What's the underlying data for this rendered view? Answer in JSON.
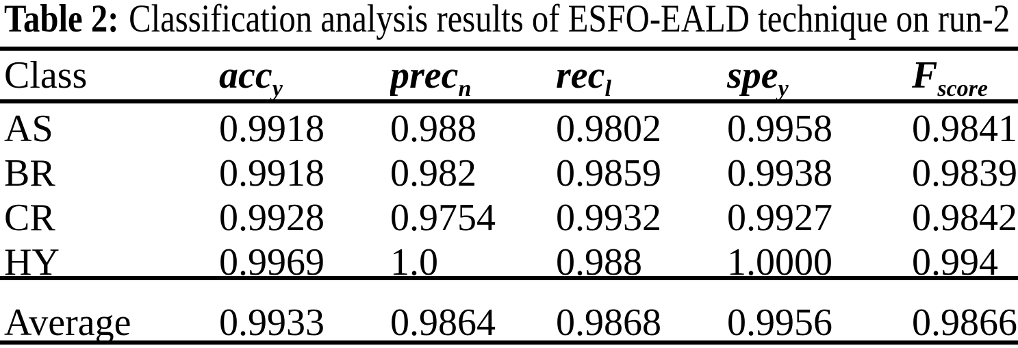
{
  "caption": {
    "label": "Table 2:",
    "text": "Classification analysis results of ESFO-EALD technique on run-2"
  },
  "table": {
    "header": {
      "class_label": "Class",
      "metrics": [
        {
          "base": "acc",
          "sub": "y"
        },
        {
          "base": "prec",
          "sub": "n"
        },
        {
          "base": "rec",
          "sub": "l"
        },
        {
          "base": "spe",
          "sub": "y"
        },
        {
          "base": "F",
          "sub": "score"
        }
      ]
    },
    "rows": [
      {
        "class": "AS",
        "values": [
          "0.9918",
          "0.988",
          "0.9802",
          "0.9958",
          "0.9841"
        ]
      },
      {
        "class": "BR",
        "values": [
          "0.9918",
          "0.982",
          "0.9859",
          "0.9938",
          "0.9839"
        ]
      },
      {
        "class": "CR",
        "values": [
          "0.9928",
          "0.9754",
          "0.9932",
          "0.9927",
          "0.9842"
        ]
      },
      {
        "class": "HY",
        "values": [
          "0.9969",
          "1.0",
          "0.988",
          "1.0000",
          "0.994"
        ]
      }
    ],
    "summary_row": {
      "class": "Average",
      "values": [
        "0.9933",
        "0.9864",
        "0.9868",
        "0.9956",
        "0.9866"
      ]
    }
  },
  "colors": {
    "text": "#000000",
    "background": "#ffffff",
    "rule": "#000000"
  }
}
